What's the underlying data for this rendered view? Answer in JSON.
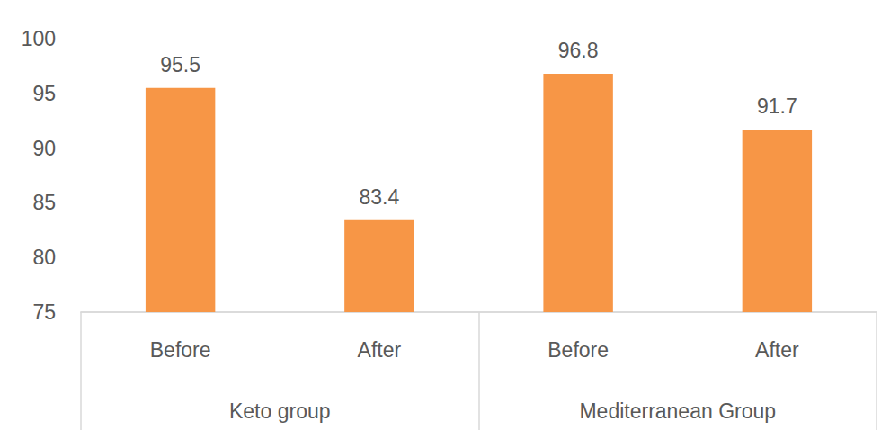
{
  "chart_data": {
    "type": "bar",
    "categories": [
      "Before",
      "After",
      "Before",
      "After"
    ],
    "groups": [
      "Keto group",
      "Mediterranean Group"
    ],
    "values": [
      95.5,
      83.4,
      96.8,
      91.7
    ],
    "color": "#f79646",
    "ylim": [
      75,
      100
    ],
    "yticks": [
      75,
      80,
      85,
      90,
      95,
      100
    ],
    "grid": false,
    "data_labels": true
  }
}
